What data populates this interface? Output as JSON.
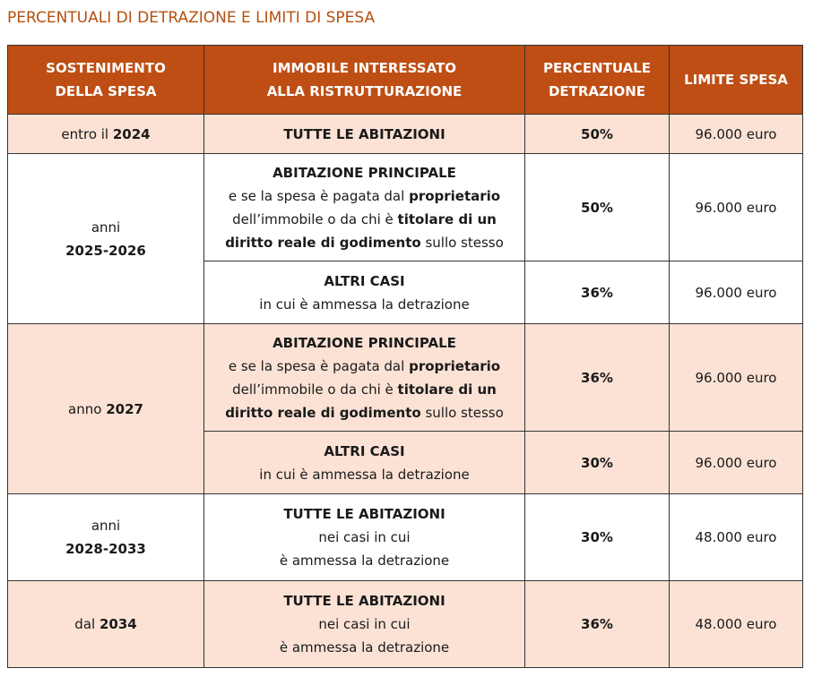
{
  "title": "PERCENTUALI DI DETRAZIONE E LIMITI DI SPESA",
  "colors": {
    "header_bg": "#be4e14",
    "title": "#b4500f",
    "row_alt": "#fbe2d5"
  },
  "headers": [
    [
      "SOSTENIMENTO",
      "DELLA SPESA"
    ],
    [
      "IMMOBILE INTERESSATO",
      "ALLA RISTRUTTURAZIONE"
    ],
    [
      "PERCENTUALE",
      "DETRAZIONE"
    ],
    [
      "LIMITE SPESA"
    ]
  ],
  "groups": [
    {
      "period": [
        [
          {
            "t": "entro il "
          },
          {
            "t": "2024",
            "b": true
          }
        ]
      ],
      "pink": true,
      "rows": [
        {
          "property": [
            [
              {
                "t": "TUTTE LE ABITAZIONI",
                "b": true
              }
            ]
          ],
          "percent": "50%",
          "limit": "96.000 euro",
          "h": 44
        }
      ]
    },
    {
      "period": [
        [
          {
            "t": "anni"
          }
        ],
        [
          {
            "t": "2025-2026",
            "b": true
          }
        ]
      ],
      "pink": false,
      "rows": [
        {
          "property": [
            [
              {
                "t": "ABITAZIONE PRINCIPALE",
                "b": true
              }
            ],
            [
              {
                "t": "e se la spesa è pagata dal "
              },
              {
                "t": "proprietario",
                "b": true
              }
            ],
            [
              {
                "t": "dell’immobile o da chi è "
              },
              {
                "t": "titolare di un",
                "b": true
              }
            ],
            [
              {
                "t": "diritto reale di godimento",
                "b": true
              },
              {
                "t": " sullo stesso"
              }
            ]
          ],
          "percent": "50%",
          "limit": "96.000 euro",
          "h": 120
        },
        {
          "property": [
            [
              {
                "t": "ALTRI CASI",
                "b": true
              }
            ],
            [
              {
                "t": "in cui è ammessa la detrazione"
              }
            ]
          ],
          "percent": "36%",
          "limit": "96.000 euro",
          "h": 70
        }
      ]
    },
    {
      "period": [
        [
          {
            "t": "anno "
          },
          {
            "t": "2027",
            "b": true
          }
        ]
      ],
      "pink": true,
      "rows": [
        {
          "property": [
            [
              {
                "t": "ABITAZIONE PRINCIPALE",
                "b": true
              }
            ],
            [
              {
                "t": "e se la spesa è pagata dal "
              },
              {
                "t": "proprietario",
                "b": true
              }
            ],
            [
              {
                "t": "dell’immobile o da chi è "
              },
              {
                "t": "titolare di un",
                "b": true
              }
            ],
            [
              {
                "t": "diritto reale di godimento",
                "b": true
              },
              {
                "t": " sullo stesso"
              }
            ]
          ],
          "percent": "36%",
          "limit": "96.000 euro",
          "h": 120
        },
        {
          "property": [
            [
              {
                "t": "ALTRI CASI",
                "b": true
              }
            ],
            [
              {
                "t": "in cui è ammessa la detrazione"
              }
            ]
          ],
          "percent": "30%",
          "limit": "96.000 euro",
          "h": 70
        }
      ]
    },
    {
      "period": [
        [
          {
            "t": "anni"
          }
        ],
        [
          {
            "t": "2028-2033",
            "b": true
          }
        ]
      ],
      "pink": false,
      "rows": [
        {
          "property": [
            [
              {
                "t": "TUTTE LE ABITAZIONI",
                "b": true
              }
            ],
            [
              {
                "t": "nei casi in cui"
              }
            ],
            [
              {
                "t": "è ammessa la detrazione"
              }
            ]
          ],
          "percent": "30%",
          "limit": "48.000 euro",
          "h": 97
        }
      ]
    },
    {
      "period": [
        [
          {
            "t": "dal "
          },
          {
            "t": "2034",
            "b": true
          }
        ]
      ],
      "pink": true,
      "rows": [
        {
          "property": [
            [
              {
                "t": "TUTTE LE ABITAZIONI",
                "b": true
              }
            ],
            [
              {
                "t": "nei casi in cui"
              }
            ],
            [
              {
                "t": "è ammessa la detrazione"
              }
            ]
          ],
          "percent": "36%",
          "limit": "48.000 euro",
          "h": 97
        }
      ]
    }
  ]
}
